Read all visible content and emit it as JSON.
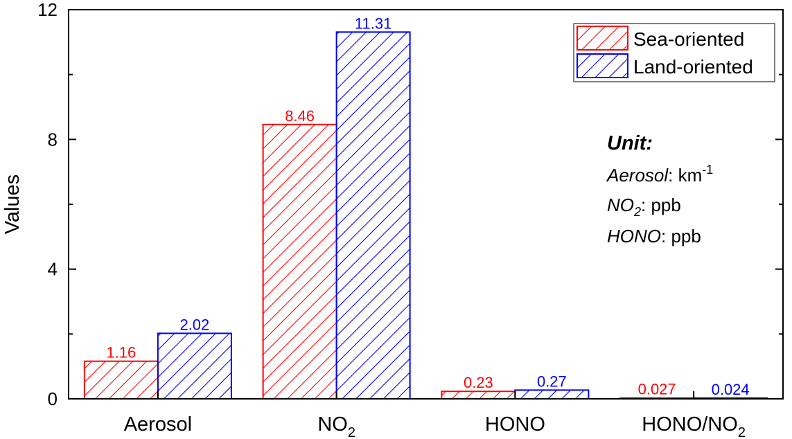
{
  "chart_data": {
    "type": "bar",
    "categories": [
      "Aerosol",
      "NO2",
      "HONO",
      "HONO/NO2"
    ],
    "category_display": [
      {
        "main": "Aerosol",
        "sub": ""
      },
      {
        "main": "NO",
        "sub": "2"
      },
      {
        "main": "HONO",
        "sub": ""
      },
      {
        "main": "HONO/NO",
        "sub": "2"
      }
    ],
    "series": [
      {
        "name": "Sea-oriented",
        "values": [
          1.16,
          8.46,
          0.23,
          0.027
        ],
        "labels": [
          "1.16",
          "8.46",
          "0.23",
          "0.027"
        ],
        "color": "#ff0000"
      },
      {
        "name": "Land-oriented",
        "values": [
          2.02,
          11.31,
          0.27,
          0.024
        ],
        "labels": [
          "2.02",
          "11.31",
          "0.27",
          "0.024"
        ],
        "color": "#0000ff"
      }
    ],
    "xlabel": "",
    "ylabel": "Values",
    "ylim": [
      0,
      12
    ],
    "yticks": [
      0,
      4,
      8,
      12
    ],
    "grid": false,
    "legend": "top-right",
    "pattern": "diagonal-hatch",
    "annotation": {
      "title": "Unit:",
      "lines": [
        {
          "italic": "Aerosol",
          "text": ": km",
          "sup": "-1"
        },
        {
          "italic": "NO",
          "sub": "2",
          "text": ": ppb"
        },
        {
          "italic": "HONO",
          "text": ": ppb"
        }
      ]
    }
  }
}
